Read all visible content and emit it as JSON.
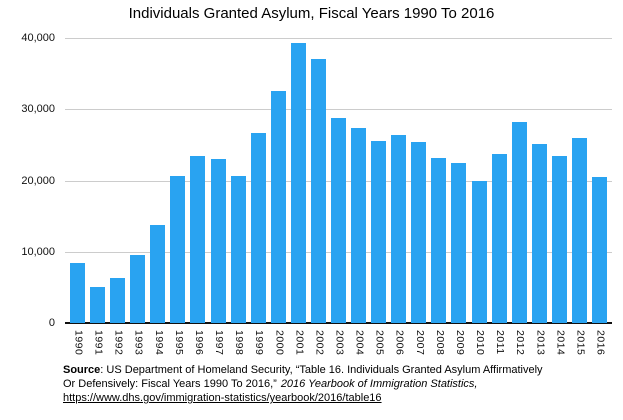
{
  "title": "Individuals Granted Asylum, Fiscal Years 1990 To 2016",
  "colors": {
    "bar": "#29a3f1",
    "gridline": "#cccccc",
    "axis": "#111111",
    "text": "#000000"
  },
  "chart_data": {
    "type": "bar",
    "title": "Individuals Granted Asylum, Fiscal Years 1990 To 2016",
    "xlabel": "",
    "ylabel": "",
    "ylim": [
      0,
      40000
    ],
    "grid": true,
    "legend": false,
    "bar_color": "#29a3f1",
    "y_ticks": [
      0,
      10000,
      20000,
      30000,
      40000
    ],
    "y_tick_labels": [
      "0",
      "10,000",
      "20,000",
      "30,000",
      "40,000"
    ],
    "categories": [
      "1990",
      "1991",
      "1992",
      "1993",
      "1994",
      "1995",
      "1996",
      "1997",
      "1998",
      "1999",
      "2000",
      "2001",
      "2002",
      "2003",
      "2004",
      "2005",
      "2006",
      "2007",
      "2008",
      "2009",
      "2010",
      "2011",
      "2012",
      "2013",
      "2014",
      "2015",
      "2016"
    ],
    "values": [
      8400,
      5000,
      6300,
      9500,
      13700,
      20700,
      23500,
      23000,
      20600,
      26700,
      32500,
      39300,
      37000,
      28800,
      27400,
      25500,
      26400,
      25400,
      23100,
      22400,
      19900,
      23700,
      28200,
      25100,
      23400,
      26000,
      20500
    ]
  },
  "source": {
    "bold_label": "Source",
    "line1": ": US Department of Homeland Security, “Table 16. Individuals Granted Asylum Affirmatively",
    "line2_plain": "Or Defensively: Fiscal Years 1990 To 2016,”",
    "line2_italic": "2016 Yearbook of Immigration Statistics,",
    "line3_url": "https://www.dhs.gov/immigration-statistics/yearbook/2016/table16"
  }
}
